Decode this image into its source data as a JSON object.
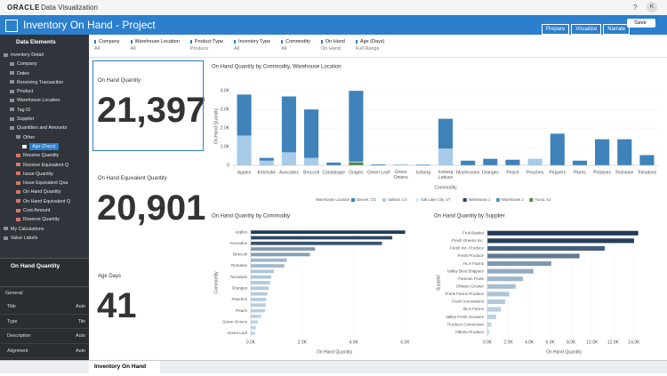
{
  "header": {
    "brand": "ORACLE",
    "product": "Data Visualization",
    "help": "?",
    "user": "K"
  },
  "title_bar": {
    "title": "Inventory On Hand - Project",
    "buttons": [
      "Prepare",
      "Visualize",
      "Narrate"
    ],
    "save": "Save"
  },
  "data_panel": {
    "title": "Data Elements",
    "tree": [
      {
        "label": "Inventory Detail",
        "children": [
          {
            "label": "Company"
          },
          {
            "label": "Dates"
          },
          {
            "label": "Receiving Transaction"
          },
          {
            "label": "Product"
          },
          {
            "label": "Warehouse Location"
          },
          {
            "label": "Tag ID"
          },
          {
            "label": "Supplier"
          },
          {
            "label": "Quantities and Amounts",
            "children": [
              {
                "label": "Other",
                "children": [
                  {
                    "label": "Age (Days)",
                    "selected": true
                  }
                ]
              },
              {
                "label": "Receive Quantity",
                "measure": true
              },
              {
                "label": "Receive Equivalent Q",
                "measure": true
              },
              {
                "label": "Issue Quantity",
                "measure": true
              },
              {
                "label": "Issue Equivalent Qua",
                "measure": true
              },
              {
                "label": "On Hand Quantity",
                "measure": true
              },
              {
                "label": "On Hand Equivalent Q",
                "measure": true
              },
              {
                "label": "Cost Amount",
                "measure": true
              },
              {
                "label": "Reserve Quantity",
                "measure": true
              }
            ]
          }
        ]
      },
      {
        "label": "My Calculations"
      },
      {
        "label": "Value Labels"
      }
    ]
  },
  "properties": {
    "title": "On Hand Quantity",
    "section": "General",
    "rows": [
      [
        "Title",
        "Auto"
      ],
      [
        "Type",
        "Tile"
      ],
      [
        "Description",
        "Auto"
      ],
      [
        "Alignment",
        "Auto"
      ]
    ]
  },
  "filters": [
    {
      "label": "Company",
      "value": "All"
    },
    {
      "label": "Warehouse Location",
      "value": "All"
    },
    {
      "label": "Product Type",
      "value": "Produce"
    },
    {
      "label": "Inventory Type",
      "value": "All"
    },
    {
      "label": "Commodity",
      "value": "All"
    },
    {
      "label": "On Hand",
      "value": "On Hand"
    },
    {
      "label": "Age (Days)",
      "value": "Full Range"
    }
  ],
  "tiles": [
    {
      "title": "On Hand Quantity",
      "value": "21,397"
    },
    {
      "title": "On Hand Equivalent Quantity",
      "value": "20,901"
    },
    {
      "title": "Age Days",
      "value": "41"
    }
  ],
  "chart_data": [
    {
      "type": "bar",
      "stacked": true,
      "title": "On Hand Quantity by Commodity, Warehouse Location",
      "x_label": "Commodity",
      "y_label": "On Hand Quantity",
      "legend_title": "Warehouse Location",
      "categories": [
        "Apples",
        "Artichoke",
        "Avocados",
        "Broccoli",
        "Cantaloupe",
        "Grapes",
        "Green Leaf",
        "Green Onions",
        "Iceberg",
        "Iceberg Lettuce",
        "Mushrooms",
        "Oranges",
        "Peach",
        "Peaches",
        "Peppers",
        "Plums",
        "Potatoes",
        "Romaine",
        "Tomatoes"
      ],
      "series": [
        {
          "name": "Denver, CO",
          "color": "#3f83ba",
          "values": [
            2200,
            150,
            3000,
            2600,
            150,
            3800,
            50,
            0,
            40,
            1600,
            250,
            350,
            300,
            0,
            1700,
            250,
            1400,
            1400,
            550
          ]
        },
        {
          "name": "Salinas, CA",
          "color": "#a7cbe8",
          "values": [
            1600,
            250,
            700,
            400,
            0,
            50,
            0,
            60,
            0,
            900,
            0,
            0,
            0,
            350,
            0,
            0,
            0,
            0,
            0
          ]
        },
        {
          "name": "Salt Lake City, UT",
          "color": "#d8e7f3",
          "values": [
            0,
            0,
            0,
            0,
            0,
            0,
            0,
            0,
            0,
            0,
            0,
            0,
            0,
            0,
            0,
            0,
            0,
            0,
            0
          ]
        },
        {
          "name": "Warehouse 1",
          "color": "#203f5c",
          "values": [
            0,
            0,
            0,
            0,
            0,
            0,
            0,
            0,
            0,
            0,
            0,
            0,
            0,
            0,
            0,
            0,
            0,
            0,
            0
          ]
        },
        {
          "name": "Warehouse 2",
          "color": "#5a8fc2",
          "values": [
            0,
            0,
            0,
            0,
            0,
            0,
            0,
            0,
            0,
            0,
            0,
            0,
            0,
            0,
            0,
            0,
            0,
            0,
            0
          ]
        },
        {
          "name": "Yuma, AZ",
          "color": "#4b8e3b",
          "values": [
            0,
            0,
            0,
            0,
            0,
            150,
            0,
            0,
            0,
            0,
            0,
            0,
            0,
            0,
            0,
            0,
            0,
            0,
            0
          ]
        }
      ],
      "ylim": [
        0,
        4200
      ],
      "yticks": [
        0,
        {
          "value": 1000,
          "label": "1.0K"
        },
        {
          "value": 2000,
          "label": "2.0K"
        },
        {
          "value": 3000,
          "label": "3.0K"
        },
        {
          "value": 4000,
          "label": "4.0K"
        }
      ]
    },
    {
      "type": "hbar",
      "title": "On Hand Quantity by Commodity",
      "x_label": "On Hand Quantity",
      "y_label": "Commodity",
      "categories": [
        "Apples",
        null,
        "Avocados",
        null,
        "Broccoli",
        null,
        "Romaine",
        null,
        "Tomatoes",
        null,
        "Oranges",
        null,
        "Peaches",
        null,
        "Peach",
        null,
        "Green Onions",
        null,
        "Green Leaf"
      ],
      "values": [
        6000,
        5500,
        5100,
        2500,
        2300,
        1400,
        1300,
        900,
        800,
        750,
        700,
        650,
        600,
        580,
        550,
        400,
        280,
        200,
        170
      ],
      "color_range": [
        "#1f3b57",
        "#c6dcee"
      ],
      "xlim": [
        0,
        6500
      ],
      "xticks": [
        {
          "value": 0,
          "label": "0.0K"
        },
        {
          "value": 2000,
          "label": "2.0K"
        },
        {
          "value": 4000,
          "label": "4.0K"
        },
        {
          "value": 6000,
          "label": "6.0K"
        }
      ]
    },
    {
      "type": "hbar",
      "title": "On Hand Quantity by Supplier",
      "x_label": "On Hand Quantity",
      "y_label": "Supplier",
      "categories": [
        "Fruit Basket",
        "Fresh Greens Inc.",
        "Fresh Inc. Produce",
        "Fresh Produce",
        "HLH Farms",
        "Valley Best Shippers",
        "Famous Fruits",
        "Chilean Grower",
        "Frank Farms Produce",
        "Fresh Innovations",
        "BLH Farms",
        "Valley Fresh Growers",
        "Produce Connection",
        "Alberto Produce"
      ],
      "values": [
        14400,
        14000,
        11200,
        8800,
        6100,
        4400,
        3400,
        2700,
        2100,
        1700,
        1300,
        850,
        400,
        200
      ],
      "color_range": [
        "#1f3b57",
        "#c6dcee"
      ],
      "xlim": [
        0,
        14600
      ],
      "xticks": [
        {
          "value": 0,
          "label": "0.0K"
        },
        {
          "value": 2000,
          "label": "2.0K"
        },
        {
          "value": 4000,
          "label": "4.0K"
        },
        {
          "value": 6000,
          "label": "6.0K"
        },
        {
          "value": 8000,
          "label": "8.0K"
        },
        {
          "value": 10000,
          "label": "10.0K"
        },
        {
          "value": 12000,
          "label": "12.0K"
        },
        {
          "value": 14000,
          "label": "14.0K"
        }
      ]
    }
  ],
  "footer": {
    "tab": "Inventory On Hand"
  }
}
